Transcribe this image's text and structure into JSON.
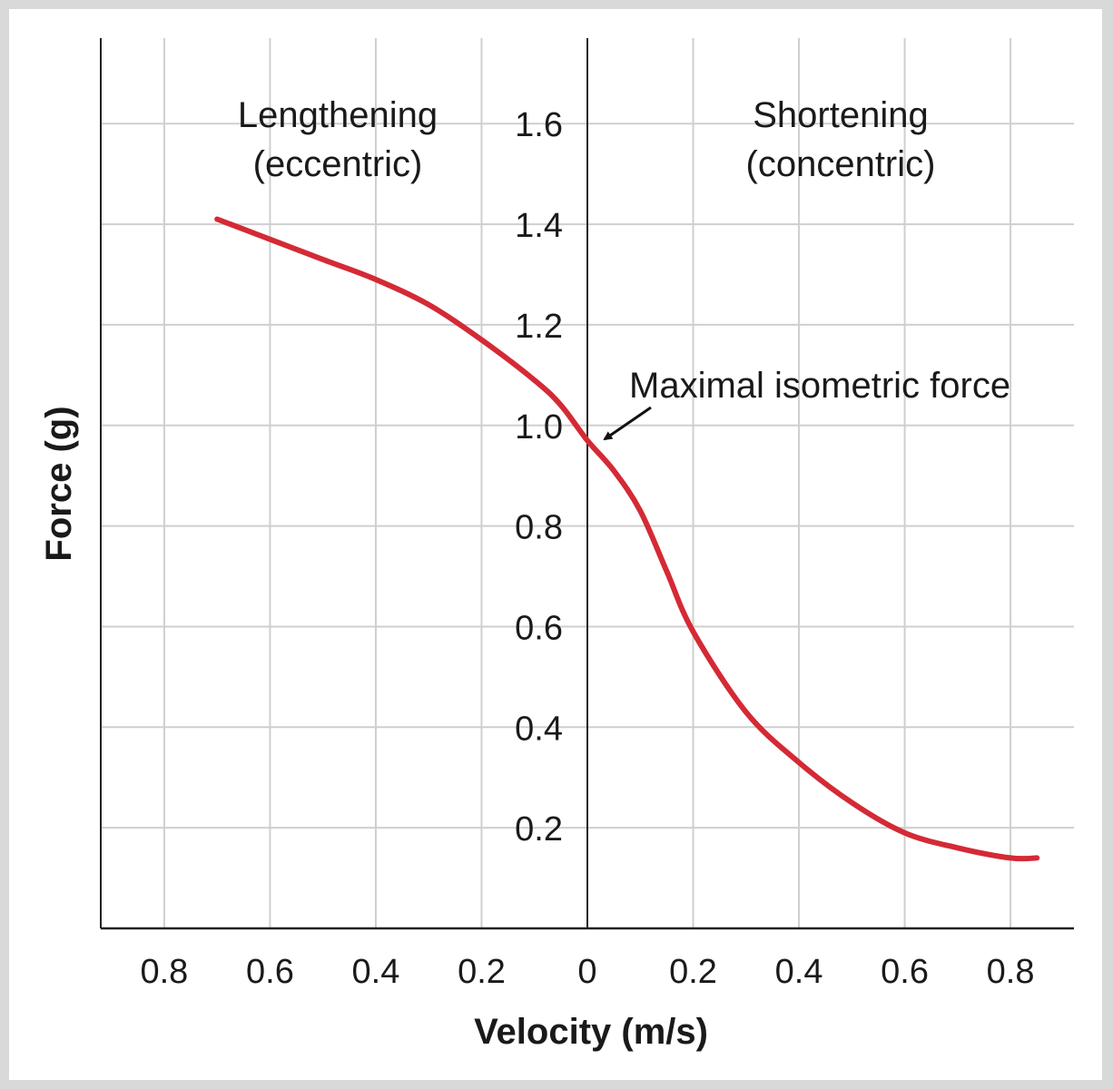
{
  "chart_data": {
    "type": "line",
    "xlabel": "Velocity (m/s)",
    "ylabel": "Force (g)",
    "x_tick_labels": [
      "0.8",
      "0.6",
      "0.4",
      "0.2",
      "0",
      "0.2",
      "0.4",
      "0.6",
      "0.8"
    ],
    "y_tick_labels": [
      "0.2",
      "0.4",
      "0.6",
      "0.8",
      "1.0",
      "1.2",
      "1.4",
      "1.6"
    ],
    "xlim": [
      -0.92,
      0.92
    ],
    "ylim": [
      0,
      1.77
    ],
    "grid": true,
    "x_grid_step": 0.2,
    "y_grid_step": 0.2,
    "series": [
      {
        "color": "#d42a35",
        "points": [
          {
            "x": -0.7,
            "y": 1.41
          },
          {
            "x": -0.6,
            "y": 1.37
          },
          {
            "x": -0.5,
            "y": 1.33
          },
          {
            "x": -0.4,
            "y": 1.29
          },
          {
            "x": -0.3,
            "y": 1.24
          },
          {
            "x": -0.2,
            "y": 1.17
          },
          {
            "x": -0.1,
            "y": 1.09
          },
          {
            "x": -0.05,
            "y": 1.04
          },
          {
            "x": 0.0,
            "y": 0.97
          },
          {
            "x": 0.05,
            "y": 0.91
          },
          {
            "x": 0.1,
            "y": 0.83
          },
          {
            "x": 0.15,
            "y": 0.71
          },
          {
            "x": 0.2,
            "y": 0.59
          },
          {
            "x": 0.3,
            "y": 0.43
          },
          {
            "x": 0.4,
            "y": 0.33
          },
          {
            "x": 0.5,
            "y": 0.25
          },
          {
            "x": 0.6,
            "y": 0.19
          },
          {
            "x": 0.7,
            "y": 0.16
          },
          {
            "x": 0.8,
            "y": 0.14
          },
          {
            "x": 0.85,
            "y": 0.14
          }
        ]
      }
    ],
    "annotations": [
      {
        "id": "lengthening",
        "lines": [
          "Lengthening",
          "(eccentric)"
        ]
      },
      {
        "id": "shortening",
        "lines": [
          "Shortening",
          "(concentric)"
        ]
      },
      {
        "id": "max-isometric",
        "text": "Maximal isometric force",
        "target": {
          "x": 0.0,
          "y": 0.97
        }
      }
    ]
  }
}
